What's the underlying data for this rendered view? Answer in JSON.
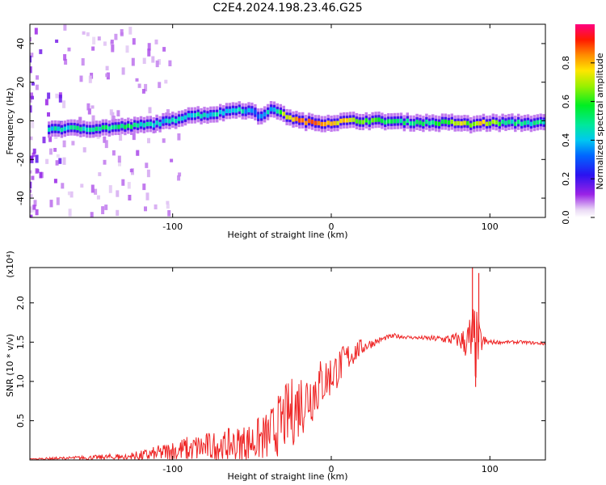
{
  "title": "C2E4.2024.198.23.46.G25",
  "chart_data": [
    {
      "type": "heatmap",
      "title": "C2E4.2024.198.23.46.G25",
      "xlabel": "Height of straight line (km)",
      "ylabel": "Frequency (Hz)",
      "xlim": [
        -190,
        135
      ],
      "ylim": [
        -50,
        50
      ],
      "xticks": [
        -100,
        0,
        100
      ],
      "xtick_labels": [
        "-100",
        "0",
        "100"
      ],
      "yticks": [
        -40,
        -20,
        0,
        20,
        40
      ],
      "ytick_labels": [
        "-40",
        "-20",
        "0",
        "20",
        "40"
      ],
      "colorbar": {
        "label": "Normalized spectral amplitude",
        "range": [
          0,
          1
        ],
        "ticks": [
          0.0,
          0.2,
          0.4,
          0.6,
          0.8
        ],
        "tick_labels": [
          "0.0",
          "0.2",
          "0.4",
          "0.6",
          "0.8"
        ],
        "colormap": "rainbow (white-violet-blue-cyan-green-yellow-red-magenta)"
      },
      "trace_center_hz": {
        "height_km": [
          -175,
          -150,
          -130,
          -115,
          -100,
          -90,
          -80,
          -70,
          -60,
          -50,
          -45,
          -40,
          -35,
          -30,
          -20,
          -10,
          0,
          10,
          30,
          60,
          80,
          88,
          95,
          110,
          135
        ],
        "freq_hz": [
          -4,
          -4,
          -3,
          -2,
          0,
          3,
          3,
          4,
          6,
          5,
          2,
          5,
          6,
          3,
          0,
          -1,
          -1,
          0,
          0,
          -1,
          -1,
          -2,
          -1,
          -1,
          -1
        ],
        "amplitude": [
          0.45,
          0.5,
          0.5,
          0.45,
          0.4,
          0.45,
          0.45,
          0.4,
          0.45,
          0.35,
          0.35,
          0.45,
          0.35,
          0.7,
          0.85,
          0.85,
          0.8,
          0.75,
          0.55,
          0.5,
          0.7,
          0.65,
          0.8,
          0.5,
          0.45
        ]
      }
    },
    {
      "type": "line",
      "series": [
        {
          "name": "SNR",
          "color": "#ee2222",
          "x": [
            -190,
            -170,
            -150,
            -130,
            -120,
            -110,
            -100,
            -90,
            -80,
            -70,
            -60,
            -50,
            -40,
            -35,
            -30,
            -25,
            -20,
            -15,
            -10,
            -5,
            0,
            5,
            10,
            15,
            20,
            25,
            30,
            35,
            40,
            50,
            60,
            70,
            80,
            85,
            90,
            95,
            100,
            110,
            120,
            135
          ],
          "y": [
            0.01,
            0.02,
            0.03,
            0.04,
            0.05,
            0.08,
            0.11,
            0.14,
            0.16,
            0.18,
            0.2,
            0.23,
            0.3,
            0.4,
            0.52,
            0.6,
            0.72,
            0.8,
            0.9,
            1.0,
            1.08,
            1.18,
            1.3,
            1.38,
            1.44,
            1.48,
            1.52,
            1.56,
            1.58,
            1.56,
            1.55,
            1.54,
            1.53,
            1.5,
            1.45,
            1.5,
            1.5,
            1.5,
            1.5,
            1.48
          ],
          "noise": [
            0.01,
            0.02,
            0.03,
            0.05,
            0.07,
            0.1,
            0.14,
            0.17,
            0.19,
            0.2,
            0.22,
            0.26,
            0.32,
            0.38,
            0.42,
            0.45,
            0.45,
            0.42,
            0.38,
            0.32,
            0.28,
            0.24,
            0.2,
            0.15,
            0.1,
            0.06,
            0.04,
            0.03,
            0.03,
            0.02,
            0.03,
            0.05,
            0.1,
            0.22,
            0.6,
            0.12,
            0.03,
            0.02,
            0.02,
            0.02
          ]
        }
      ],
      "spikes": [
        [
          89,
          2.45
        ],
        [
          91,
          0.93
        ],
        [
          93,
          2.38
        ]
      ],
      "xlabel": "Height of straight line (km)",
      "ylabel": "SNR (10 * v/v)",
      "scale_label": "(x10⁴)",
      "xlim": [
        -190,
        135
      ],
      "ylim": [
        0,
        2.45
      ],
      "xticks": [
        -100,
        0,
        100
      ],
      "xtick_labels": [
        "-100",
        "0",
        "100"
      ],
      "yticks": [
        0.5,
        1.0,
        1.5,
        2.0
      ],
      "ytick_labels": [
        "0.5",
        "1.0",
        "1.5",
        "2.0"
      ]
    }
  ]
}
